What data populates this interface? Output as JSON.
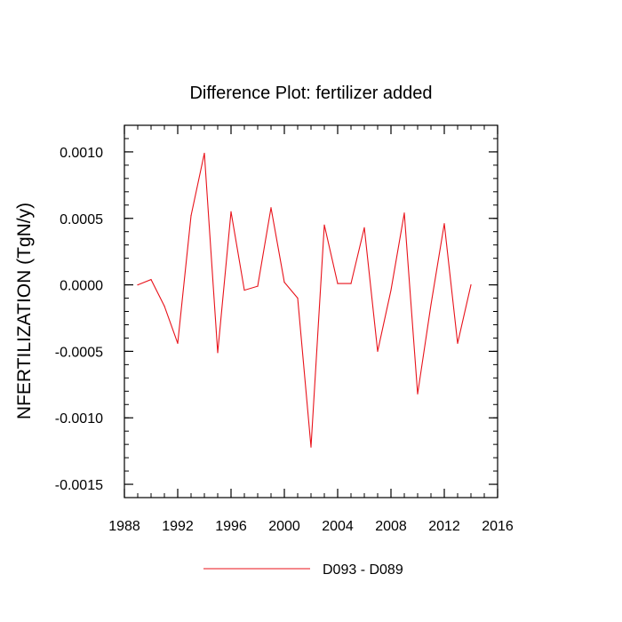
{
  "chart_data": {
    "type": "line",
    "title": "Difference Plot: fertilizer added",
    "xlabel": "",
    "ylabel": "NFERTILIZATION  (TgN/y)",
    "xlim": [
      1988,
      2016
    ],
    "ylim": [
      -0.0016,
      0.0012
    ],
    "x_ticks": [
      1988,
      1992,
      1996,
      2000,
      2004,
      2008,
      2012,
      2016
    ],
    "x_tick_labels": [
      "1988",
      "1992",
      "1996",
      "2000",
      "2004",
      "2008",
      "2012",
      "2016"
    ],
    "y_ticks": [
      0.001,
      0.0005,
      0.0,
      -0.0005,
      -0.001,
      -0.0015
    ],
    "y_tick_labels": [
      "0.0010",
      "0.0005",
      "0.0000",
      "-0.0005",
      "-0.0010",
      "-0.0015"
    ],
    "x": [
      1989,
      1990,
      1991,
      1992,
      1993,
      1994,
      1995,
      1996,
      1997,
      1998,
      1999,
      2000,
      2001,
      2002,
      2003,
      2004,
      2005,
      2006,
      2007,
      2008,
      2009,
      2010,
      2011,
      2012,
      2013,
      2014
    ],
    "series": [
      {
        "name": "D093 - D089",
        "color": "#e8121a",
        "values": [
          0.0,
          4e-05,
          -0.00016,
          -0.00044,
          0.00052,
          0.00099,
          -0.00051,
          0.00055,
          -4e-05,
          -1e-05,
          0.00058,
          2e-05,
          -0.0001,
          -0.00122,
          0.00045,
          1e-05,
          1e-05,
          0.00043,
          -0.0005,
          -4e-05,
          0.00054,
          -0.00082,
          -0.00015,
          0.00046,
          -0.00044,
          0.0
        ]
      }
    ],
    "legend": {
      "placement": "bottom-center",
      "entries": [
        "D093 - D089"
      ]
    },
    "grid": false
  }
}
